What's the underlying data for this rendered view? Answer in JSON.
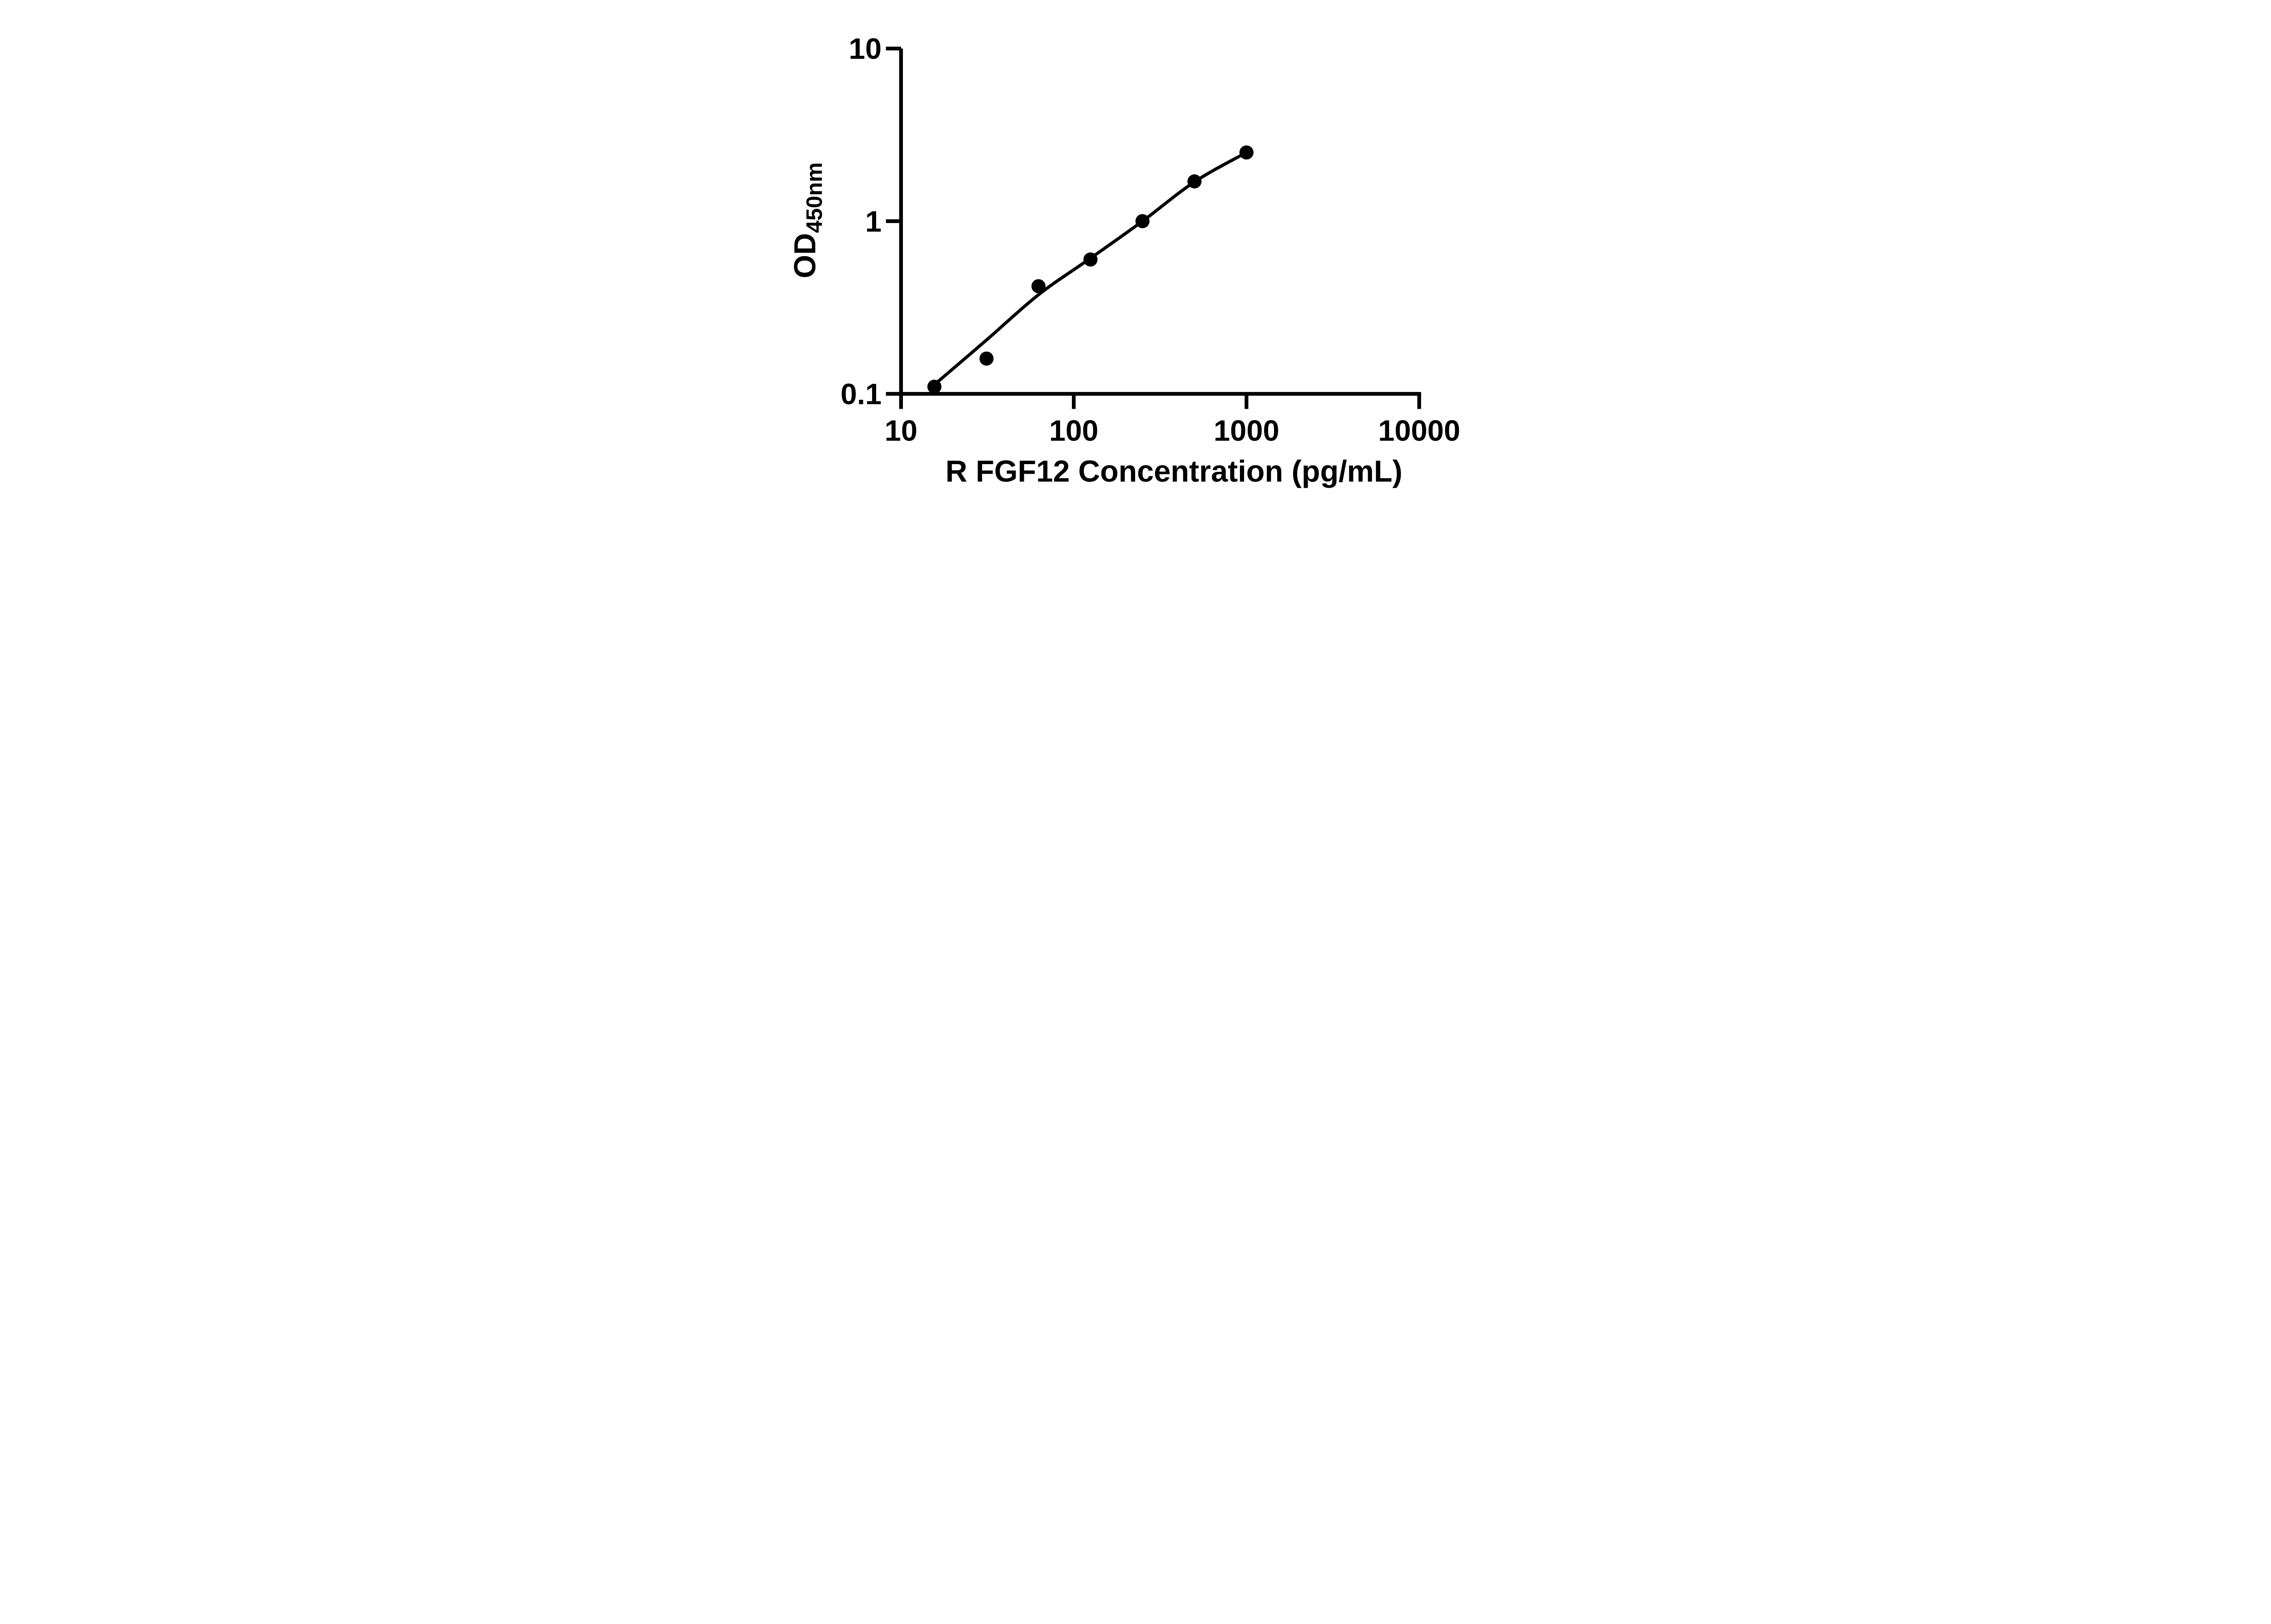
{
  "figure": {
    "background_color": "#ffffff",
    "ink_color": "#000000"
  },
  "chart_data": {
    "type": "scatter",
    "title": "",
    "xlabel": "R FGF12 Concentration (pg/mL)",
    "ylabel": "OD450nm",
    "ylabel_main": "OD",
    "ylabel_subscript": "450nm",
    "x_scale": "log10",
    "y_scale": "log10",
    "xlim": [
      10,
      10000
    ],
    "ylim": [
      0.1,
      10
    ],
    "x_tick_labels": [
      "10",
      "100",
      "1000",
      "10000"
    ],
    "x_tick_values": [
      10,
      100,
      1000,
      10000
    ],
    "y_tick_labels": [
      "0.1",
      "1",
      "10"
    ],
    "y_tick_values": [
      0.1,
      1,
      10
    ],
    "grid": false,
    "legend": false,
    "marker": {
      "shape": "circle",
      "color": "#000000"
    },
    "line": {
      "style": "smooth-fit",
      "color": "#000000"
    },
    "points": [
      {
        "x": 15.6,
        "y": 0.11
      },
      {
        "x": 31.25,
        "y": 0.16
      },
      {
        "x": 62.5,
        "y": 0.42
      },
      {
        "x": 125,
        "y": 0.6
      },
      {
        "x": 250,
        "y": 1.0
      },
      {
        "x": 500,
        "y": 1.7
      },
      {
        "x": 1000,
        "y": 2.5
      }
    ],
    "fit_curve": [
      {
        "x": 15.6,
        "y": 0.113
      },
      {
        "x": 31.25,
        "y": 0.205
      },
      {
        "x": 62.5,
        "y": 0.375
      },
      {
        "x": 125,
        "y": 0.61
      },
      {
        "x": 250,
        "y": 1.0
      },
      {
        "x": 500,
        "y": 1.69
      },
      {
        "x": 1000,
        "y": 2.5
      }
    ]
  }
}
